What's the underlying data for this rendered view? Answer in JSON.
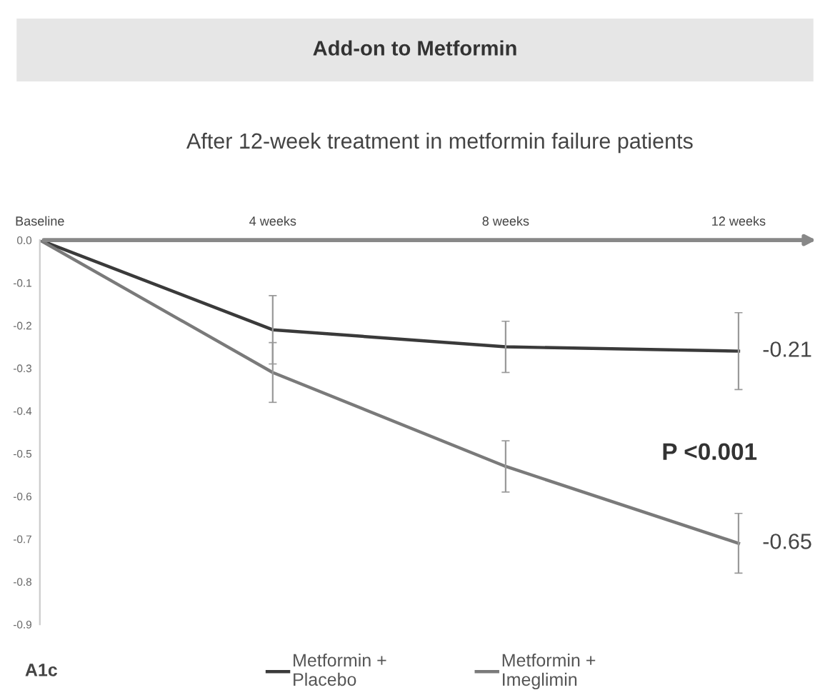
{
  "chart_data": {
    "type": "line",
    "title": "Add-on to Metformin",
    "subtitle": "After 12-week treatment in metformin failure patients",
    "categories": [
      "Baseline",
      "4 weeks",
      "8 weeks",
      "12 weeks"
    ],
    "series": [
      {
        "name": "Metformin +\nPlacebo",
        "color": "#3a3a3a",
        "values": [
          0,
          -0.21,
          -0.25,
          -0.26
        ],
        "errors": [
          null,
          0.08,
          0.06,
          0.09
        ]
      },
      {
        "name": "Metformin +\nImeglimin",
        "color": "#7a7a7a",
        "values": [
          0,
          -0.31,
          -0.53,
          -0.71
        ],
        "errors": [
          null,
          0.07,
          0.06,
          0.07
        ]
      }
    ],
    "ylim": [
      -0.9,
      0
    ],
    "yticks": [
      {
        "value": 0,
        "label": "0.0"
      },
      {
        "value": -0.1,
        "label": "-0.1"
      },
      {
        "value": -0.2,
        "label": "-0.2"
      },
      {
        "value": -0.3,
        "label": "-0.3"
      },
      {
        "value": -0.4,
        "label": "-0.4"
      },
      {
        "value": -0.5,
        "label": "-0.5"
      },
      {
        "value": -0.6,
        "label": "-0.6"
      },
      {
        "value": -0.7,
        "label": "-0.7"
      },
      {
        "value": -0.8,
        "label": "-0.8"
      },
      {
        "value": -0.9,
        "label": "-0.9"
      }
    ],
    "annotations": [
      {
        "text": "-0.21",
        "x": "12 weeks",
        "y": -0.26
      },
      {
        "text": "-0.65",
        "x": "12 weeks",
        "y": -0.71
      },
      "P <0.001",
      "A1c"
    ],
    "legend": "bottom",
    "grid": false,
    "marker": "none",
    "line_style": "solid"
  }
}
